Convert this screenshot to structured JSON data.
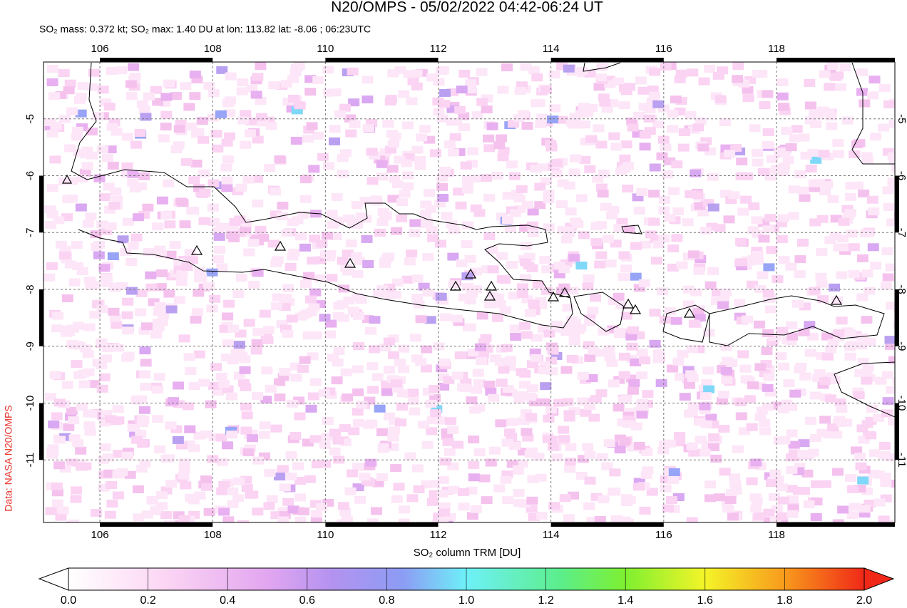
{
  "header": {
    "title": "N20/OMPS - 05/02/2022 04:42-06:24 UT",
    "subtitle": "SO₂ mass: 0.372 kt; SO₂ max: 1.40 DU at lon: 113.82 lat: -8.06 ; 06:23UTC",
    "credit": "Data: NASA N20/OMPS"
  },
  "map": {
    "xlim": [
      105,
      120.1
    ],
    "ylim": [
      -12.1,
      -4.0
    ],
    "xticks": [
      106,
      108,
      110,
      112,
      114,
      116,
      118
    ],
    "yticks": [
      -5,
      -6,
      -7,
      -8,
      -9,
      -10,
      -11
    ],
    "grid": true
  },
  "colorbar": {
    "label": "SO₂ column TRM [DU]",
    "lim": [
      0,
      2
    ],
    "ticks": [
      {
        "value": 0,
        "label": "0.0"
      },
      {
        "value": 0.2,
        "label": "0.2"
      },
      {
        "value": 0.4,
        "label": "0.4"
      },
      {
        "value": 0.6,
        "label": "0.6"
      },
      {
        "value": 0.8,
        "label": "0.8"
      },
      {
        "value": 1,
        "label": "1.0"
      },
      {
        "value": 1.2,
        "label": "1.2"
      },
      {
        "value": 1.4,
        "label": "1.4"
      },
      {
        "value": 1.6,
        "label": "1.6"
      },
      {
        "value": 1.8,
        "label": "1.8"
      },
      {
        "value": 2,
        "label": "2.0"
      }
    ]
  }
}
